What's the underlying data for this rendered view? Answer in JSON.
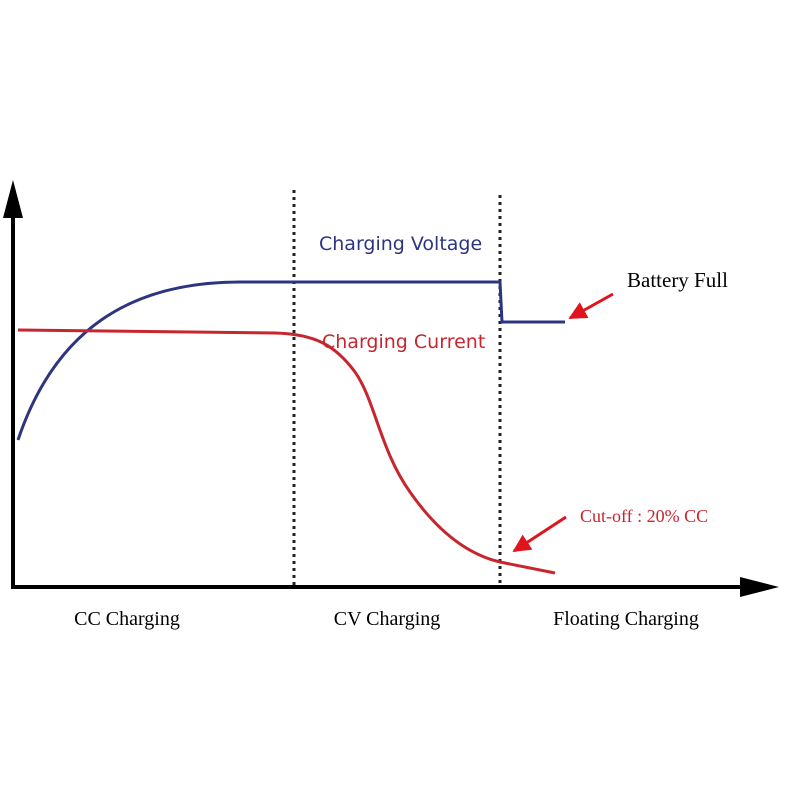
{
  "labels": {
    "voltage": "Charging Voltage",
    "current": "Charging Current",
    "battery_full": "Battery Full",
    "cutoff": "Cut-off : 20% CC"
  },
  "phases": [
    "CC Charging",
    "CV Charging",
    "Floating Charging"
  ],
  "colors": {
    "voltage": "#2e3580",
    "current": "#c8262e",
    "arrow": "#e0141c",
    "axis": "#000000",
    "phase_divider": "#222222",
    "label_text": "#000000"
  }
}
